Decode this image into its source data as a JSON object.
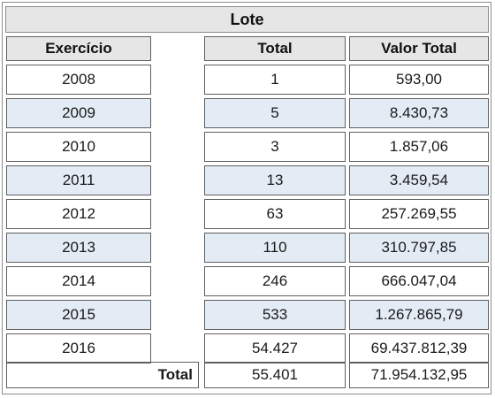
{
  "title": "Lote",
  "headers": {
    "exercicio": "Exercício",
    "total": "Total",
    "valor": "Valor Total"
  },
  "rows": [
    {
      "year": "2008",
      "total": "1",
      "valor": "593,00"
    },
    {
      "year": "2009",
      "total": "5",
      "valor": "8.430,73"
    },
    {
      "year": "2010",
      "total": "3",
      "valor": "1.857,06"
    },
    {
      "year": "2011",
      "total": "13",
      "valor": "3.459,54"
    },
    {
      "year": "2012",
      "total": "63",
      "valor": "257.269,55"
    },
    {
      "year": "2013",
      "total": "110",
      "valor": "310.797,85"
    },
    {
      "year": "2014",
      "total": "246",
      "valor": "666.047,04"
    },
    {
      "year": "2015",
      "total": "533",
      "valor": "1.267.865,79"
    },
    {
      "year": "2016",
      "total": "54.427",
      "valor": "69.437.812,39"
    }
  ],
  "footer": {
    "label": "Total",
    "total": "55.401",
    "valor": "71.954.132,95"
  }
}
